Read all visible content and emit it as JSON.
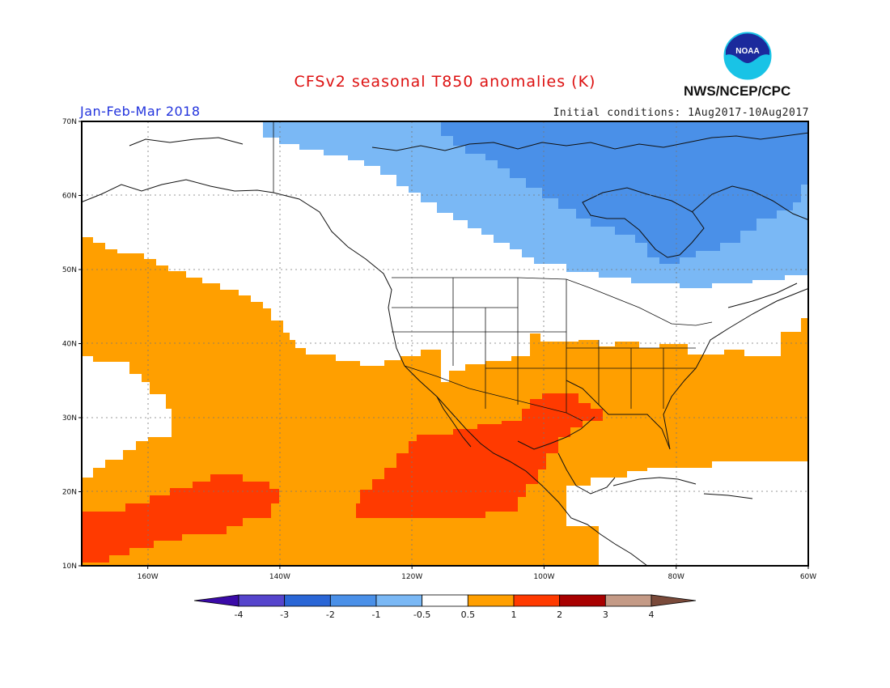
{
  "title": "CFSv2 seasonal T850 anomalies (K)",
  "period": "Jan-Feb-Mar 2018",
  "initial_conditions": "Initial conditions: 1Aug2017-10Aug2017",
  "agency": "NWS/NCEP/CPC",
  "logo_text": "NOAA",
  "map": {
    "lon_range": [
      -170,
      -60
    ],
    "lat_range": [
      10,
      70
    ],
    "lat_ticks": [
      {
        "value": 70,
        "label": "70N"
      },
      {
        "value": 60,
        "label": "60N"
      },
      {
        "value": 50,
        "label": "50N"
      },
      {
        "value": 40,
        "label": "40N"
      },
      {
        "value": 30,
        "label": "30N"
      },
      {
        "value": 20,
        "label": "20N"
      },
      {
        "value": 10,
        "label": "10N"
      }
    ],
    "lon_ticks": [
      {
        "value": -160,
        "label": "160W"
      },
      {
        "value": -140,
        "label": "140W"
      },
      {
        "value": -120,
        "label": "120W"
      },
      {
        "value": -100,
        "label": "100W"
      },
      {
        "value": -80,
        "label": "80W"
      },
      {
        "value": -60,
        "label": "60W"
      }
    ],
    "gridlines": true
  },
  "colorbar": {
    "labels": [
      "-4",
      "-3",
      "-2",
      "-1",
      "-0.5",
      "0.5",
      "1",
      "2",
      "3",
      "4"
    ],
    "colors": [
      "#3a0aa8",
      "#5544cc",
      "#2a66d6",
      "#4a90e8",
      "#7ab8f5",
      "#ffffff",
      "#ff9f00",
      "#ff3a00",
      "#a80000",
      "#c49a86",
      "#7a4a3a"
    ]
  },
  "legend_classes": {
    "cold_moderate": "#4a90e8",
    "cold_weak": "#7ab8f5",
    "neutral": "#ffffff",
    "warm_weak": "#ff9f00",
    "warm_moderate": "#ff3a00"
  }
}
